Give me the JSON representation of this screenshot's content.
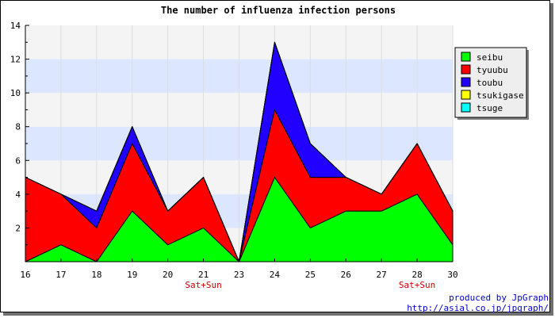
{
  "chart_data": {
    "type": "area",
    "stacked": true,
    "title": "The number of influenza infection persons",
    "x": [
      16,
      17,
      18,
      19,
      20,
      21,
      23,
      24,
      25,
      26,
      27,
      28,
      30
    ],
    "x_sublabels": {
      "21": "Sat+Sun",
      "28": "Sat+Sun"
    },
    "ylim": [
      0,
      14
    ],
    "yticks": [
      2,
      4,
      6,
      8,
      10,
      12,
      14
    ],
    "series": [
      {
        "name": "seibu",
        "color": "#00ff00",
        "values": [
          0,
          1,
          0,
          3,
          1,
          2,
          0,
          5,
          2,
          3,
          3,
          4,
          1
        ]
      },
      {
        "name": "tyuubu",
        "color": "#ff0000",
        "values": [
          5,
          3,
          2,
          4,
          2,
          3,
          0,
          4,
          3,
          2,
          1,
          3,
          2
        ]
      },
      {
        "name": "toubu",
        "color": "#2200ff",
        "values": [
          0,
          0,
          1,
          1,
          0,
          0,
          0,
          4,
          2,
          0,
          0,
          0,
          0
        ]
      },
      {
        "name": "tsukigase",
        "color": "#ffff00",
        "values": [
          0,
          0,
          0,
          0,
          0,
          0,
          0,
          0,
          0,
          0,
          0,
          0,
          0
        ]
      },
      {
        "name": "tsuge",
        "color": "#00ffff",
        "values": [
          0,
          0,
          0,
          0,
          0,
          0,
          0,
          0,
          0,
          0,
          0,
          0,
          0
        ]
      }
    ],
    "band_colors": [
      "#f4f4f4",
      "#dce6ff"
    ],
    "legend_position": "right"
  },
  "credits": {
    "line1": "produced by JpGraph",
    "line2": "http://asial.co.jp/jpgraph/"
  }
}
